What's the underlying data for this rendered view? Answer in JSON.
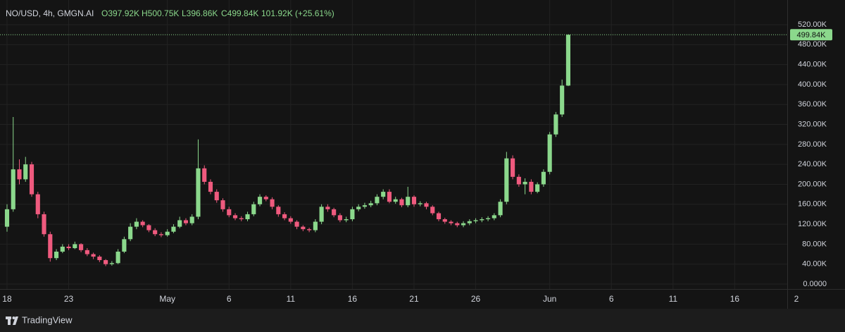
{
  "chart_data": {
    "type": "candlestick",
    "legend": {
      "symbol": "NO/USD, 4h, GMGN.AI",
      "open": "O397.92K",
      "high": "H500.75K",
      "low": "L396.86K",
      "close": "C499.84K",
      "change": "101.92K (+25.61%)"
    },
    "x": [
      0,
      0.5,
      1,
      1.5,
      2,
      2.5,
      3,
      3.5,
      4,
      4.5,
      5,
      5.5,
      6,
      6.5,
      7,
      7.5,
      8,
      8.5,
      9,
      9.5,
      10,
      10.5,
      11,
      11.5,
      12,
      12.5,
      13,
      13.5,
      14,
      14.5,
      15,
      15.5,
      16,
      16.5,
      17,
      17.5,
      18,
      18.5,
      19,
      19.5,
      20,
      20.5,
      21,
      21.5,
      22,
      22.5,
      23,
      23.5,
      24,
      24.5,
      25,
      25.5,
      26,
      26.5,
      27,
      27.5,
      28,
      28.5,
      29,
      29.5,
      30,
      30.5,
      31,
      31.5,
      32,
      32.5,
      33,
      33.5,
      34,
      34.5,
      35,
      35.5,
      36,
      36.5,
      37,
      37.5,
      38,
      38.5,
      39,
      39.5,
      40,
      40.5,
      41,
      41.5,
      42,
      42.5,
      43,
      43.5,
      44,
      44.5,
      45,
      45.5
    ],
    "open": [
      115,
      150,
      230,
      210,
      240,
      180,
      140,
      100,
      52,
      65,
      75,
      72,
      80,
      68,
      60,
      55,
      48,
      40,
      42,
      65,
      90,
      115,
      125,
      118,
      108,
      100,
      98,
      105,
      115,
      128,
      122,
      135,
      232,
      205,
      185,
      168,
      150,
      138,
      132,
      130,
      140,
      160,
      175,
      170,
      155,
      140,
      132,
      125,
      115,
      110,
      108,
      125,
      155,
      150,
      138,
      128,
      130,
      150,
      155,
      158,
      162,
      175,
      185,
      165,
      170,
      158,
      175,
      160,
      162,
      155,
      142,
      130,
      125,
      122,
      118,
      122,
      126,
      128,
      130,
      132,
      138,
      165,
      252,
      215,
      200,
      205,
      185,
      200,
      225,
      300,
      340,
      397.92
    ],
    "high": [
      160,
      335,
      250,
      255,
      245,
      185,
      145,
      105,
      70,
      80,
      80,
      85,
      82,
      72,
      63,
      58,
      50,
      46,
      70,
      95,
      122,
      132,
      128,
      120,
      112,
      104,
      110,
      120,
      135,
      132,
      140,
      290,
      238,
      210,
      190,
      172,
      155,
      142,
      136,
      145,
      165,
      180,
      178,
      174,
      158,
      144,
      136,
      128,
      118,
      113,
      130,
      160,
      160,
      153,
      142,
      135,
      155,
      160,
      163,
      167,
      180,
      190,
      190,
      175,
      173,
      195,
      178,
      166,
      165,
      158,
      145,
      133,
      128,
      125,
      126,
      130,
      132,
      134,
      136,
      142,
      170,
      265,
      258,
      220,
      212,
      210,
      204,
      230,
      305,
      345,
      410,
      500.75
    ],
    "low": [
      105,
      145,
      200,
      205,
      175,
      132,
      95,
      45,
      48,
      62,
      68,
      70,
      64,
      56,
      50,
      44,
      36,
      37,
      40,
      62,
      86,
      110,
      114,
      104,
      96,
      94,
      95,
      102,
      112,
      118,
      118,
      130,
      200,
      180,
      163,
      145,
      134,
      128,
      126,
      126,
      136,
      156,
      166,
      150,
      135,
      128,
      121,
      110,
      106,
      104,
      104,
      120,
      145,
      134,
      124,
      124,
      126,
      146,
      151,
      154,
      158,
      170,
      162,
      161,
      154,
      154,
      155,
      156,
      150,
      138,
      126,
      121,
      118,
      114,
      114,
      118,
      122,
      124,
      126,
      128,
      134,
      160,
      210,
      195,
      180,
      180,
      182,
      195,
      220,
      295,
      335,
      396.86
    ],
    "close": [
      150,
      230,
      210,
      240,
      180,
      140,
      100,
      52,
      65,
      75,
      72,
      80,
      68,
      60,
      55,
      48,
      40,
      42,
      65,
      90,
      115,
      125,
      118,
      108,
      100,
      98,
      105,
      115,
      128,
      122,
      135,
      232,
      205,
      185,
      168,
      150,
      138,
      132,
      130,
      140,
      160,
      175,
      170,
      155,
      140,
      132,
      125,
      115,
      110,
      108,
      125,
      155,
      150,
      138,
      128,
      130,
      150,
      155,
      158,
      162,
      175,
      185,
      165,
      170,
      158,
      175,
      160,
      162,
      155,
      142,
      130,
      125,
      122,
      118,
      122,
      126,
      128,
      130,
      132,
      138,
      165,
      252,
      215,
      200,
      205,
      185,
      200,
      225,
      300,
      340,
      397.92,
      499.84
    ],
    "up_color": "#8bd88c",
    "down_color": "#ef5a7e",
    "xlim": [
      -0.57,
      63.26
    ],
    "xticks": [
      {
        "value": 0,
        "label": "18"
      },
      {
        "value": 5,
        "label": "23"
      },
      {
        "value": 13,
        "label": "May"
      },
      {
        "value": 18,
        "label": "6"
      },
      {
        "value": 23,
        "label": "11"
      },
      {
        "value": 28,
        "label": "16"
      },
      {
        "value": 33,
        "label": "21"
      },
      {
        "value": 38,
        "label": "26"
      },
      {
        "value": 44,
        "label": "Jun"
      },
      {
        "value": 49,
        "label": "6"
      },
      {
        "value": 54,
        "label": "11"
      },
      {
        "value": 59,
        "label": "16"
      },
      {
        "value": 64,
        "label": "2"
      }
    ],
    "ylim": [
      -9.9,
      569.5
    ],
    "yticks": [
      {
        "value": 0,
        "label": "0.0000"
      },
      {
        "value": 40,
        "label": "40.00K"
      },
      {
        "value": 80,
        "label": "80.00K"
      },
      {
        "value": 120,
        "label": "120.00K"
      },
      {
        "value": 160,
        "label": "160.00K"
      },
      {
        "value": 200,
        "label": "200.00K"
      },
      {
        "value": 240,
        "label": "240.00K"
      },
      {
        "value": 280,
        "label": "280.00K"
      },
      {
        "value": 320,
        "label": "320.00K"
      },
      {
        "value": 360,
        "label": "360.00K"
      },
      {
        "value": 400,
        "label": "400.00K"
      },
      {
        "value": 440,
        "label": "440.00K"
      },
      {
        "value": 480,
        "label": "480.00K"
      },
      {
        "value": 520,
        "label": "520.00K"
      }
    ],
    "last_price": {
      "value": 499.84,
      "label": "499.84K"
    },
    "grid": true
  },
  "footer": {
    "brand": "TradingView"
  }
}
